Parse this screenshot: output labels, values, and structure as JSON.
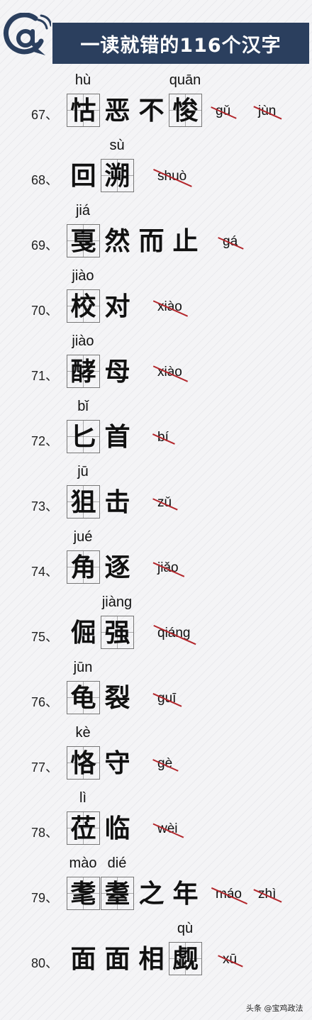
{
  "header": {
    "logo_glyph": "@",
    "title": "一读就错的116个汉字"
  },
  "rows": [
    {
      "num": "67、",
      "chars": [
        "怙",
        "恶",
        "不",
        "悛"
      ],
      "boxed": [
        0,
        3
      ],
      "pinyin": [
        {
          "text": "hù",
          "at": 0
        },
        {
          "text": "quān",
          "at": 3
        }
      ],
      "wrong": [
        "gǔ",
        "jùn"
      ]
    },
    {
      "num": "68、",
      "chars": [
        "回",
        "溯"
      ],
      "boxed": [
        1
      ],
      "pinyin": [
        {
          "text": "sù",
          "at": 1
        }
      ],
      "wrong": [
        "shuò"
      ]
    },
    {
      "num": "69、",
      "chars": [
        "戛",
        "然",
        "而",
        "止"
      ],
      "boxed": [
        0
      ],
      "pinyin": [
        {
          "text": "jiá",
          "at": 0
        }
      ],
      "wrong": [
        "gá"
      ]
    },
    {
      "num": "70、",
      "chars": [
        "校",
        "对"
      ],
      "boxed": [
        0
      ],
      "pinyin": [
        {
          "text": "jiào",
          "at": 0
        }
      ],
      "wrong": [
        "xiào"
      ]
    },
    {
      "num": "71、",
      "chars": [
        "酵",
        "母"
      ],
      "boxed": [
        0
      ],
      "pinyin": [
        {
          "text": "jiào",
          "at": 0
        }
      ],
      "wrong": [
        "xiào"
      ]
    },
    {
      "num": "72、",
      "chars": [
        "匕",
        "首"
      ],
      "boxed": [
        0
      ],
      "pinyin": [
        {
          "text": "bǐ",
          "at": 0
        }
      ],
      "wrong": [
        "bí"
      ]
    },
    {
      "num": "73、",
      "chars": [
        "狙",
        "击"
      ],
      "boxed": [
        0
      ],
      "pinyin": [
        {
          "text": "jū",
          "at": 0
        }
      ],
      "wrong": [
        "zǔ"
      ]
    },
    {
      "num": "74、",
      "chars": [
        "角",
        "逐"
      ],
      "boxed": [
        0
      ],
      "pinyin": [
        {
          "text": "jué",
          "at": 0
        }
      ],
      "wrong": [
        "jiǎo"
      ]
    },
    {
      "num": "75、",
      "chars": [
        "倔",
        "强"
      ],
      "boxed": [
        1
      ],
      "pinyin": [
        {
          "text": "jiàng",
          "at": 1
        }
      ],
      "wrong": [
        "qiáng"
      ]
    },
    {
      "num": "76、",
      "chars": [
        "龟",
        "裂"
      ],
      "boxed": [
        0
      ],
      "pinyin": [
        {
          "text": "jūn",
          "at": 0
        }
      ],
      "wrong": [
        "guī"
      ]
    },
    {
      "num": "77、",
      "chars": [
        "恪",
        "守"
      ],
      "boxed": [
        0
      ],
      "pinyin": [
        {
          "text": "kè",
          "at": 0
        }
      ],
      "wrong": [
        "gè"
      ]
    },
    {
      "num": "78、",
      "chars": [
        "莅",
        "临"
      ],
      "boxed": [
        0
      ],
      "pinyin": [
        {
          "text": "lì",
          "at": 0
        }
      ],
      "wrong": [
        "wèi"
      ]
    },
    {
      "num": "79、",
      "chars": [
        "耄",
        "耋",
        "之",
        "年"
      ],
      "boxed": [
        0,
        1
      ],
      "pinyin": [
        {
          "text": "mào",
          "at": 0
        },
        {
          "text": "dié",
          "at": 1
        }
      ],
      "wrong": [
        "máo",
        "zhì"
      ]
    },
    {
      "num": "80、",
      "chars": [
        "面",
        "面",
        "相",
        "觑"
      ],
      "boxed": [
        3
      ],
      "pinyin": [
        {
          "text": "qù",
          "at": 3
        }
      ],
      "wrong": [
        "xū"
      ]
    }
  ],
  "watermark": "头条 @宝鸡政法"
}
